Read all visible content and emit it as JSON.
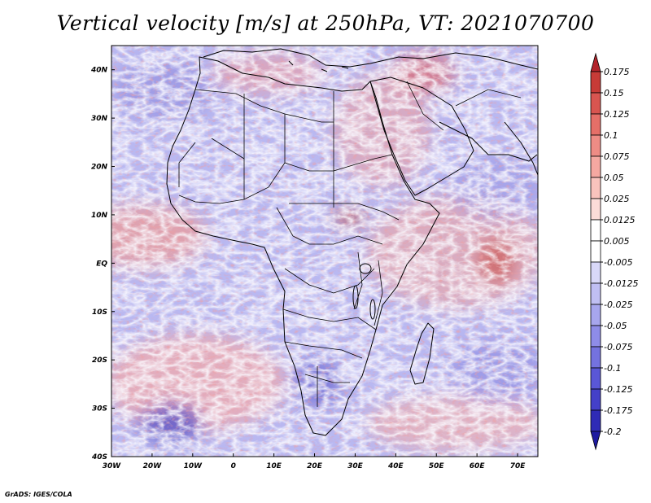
{
  "title": "Vertical velocity [m/s] at 250hPa, VT: 2021070700",
  "credit": "GrADS: IGES/COLA",
  "map": {
    "lon_labels": [
      "30W",
      "20W",
      "10W",
      "0",
      "10E",
      "20E",
      "30E",
      "40E",
      "50E",
      "60E",
      "70E"
    ],
    "lat_labels": [
      "40N",
      "30N",
      "20N",
      "10N",
      "EQ",
      "10S",
      "20S",
      "30S",
      "40S"
    ],
    "lon_range": [
      -30,
      75
    ],
    "lat_range": [
      -40,
      45
    ],
    "colors": {
      "up_strong": "#c0392b",
      "up_weak": "#f4a7a2",
      "down_weak": "#a3a3ee",
      "down_strong": "#3a2fb5",
      "land_border": "#000000"
    }
  },
  "colorbar": {
    "labels": [
      "0.175",
      "0.15",
      "0.125",
      "0.1",
      "0.075",
      "0.05",
      "0.025",
      "0.0125",
      "0.005",
      "-0.005",
      "-0.0125",
      "-0.025",
      "-0.05",
      "-0.075",
      "-0.1",
      "-0.125",
      "-0.175",
      "-0.2"
    ],
    "colors": [
      "#b2232a",
      "#c73b37",
      "#d85550",
      "#e56f68",
      "#ee8c85",
      "#f5a8a1",
      "#f9c3bd",
      "#fcdcd8",
      "#ffffff",
      "#ffffff",
      "#d9d8f8",
      "#c0bff3",
      "#a7a6ee",
      "#8e8ce8",
      "#7472df",
      "#5a57d6",
      "#4440c9",
      "#2f2bb6",
      "#1e1aa0"
    ]
  }
}
